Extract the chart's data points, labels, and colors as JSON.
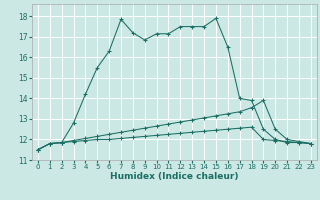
{
  "xlabel": "Humidex (Indice chaleur)",
  "bg_color": "#cce8e4",
  "grid_color": "#ffffff",
  "line_color": "#1a6e64",
  "xlim": [
    -0.5,
    23.5
  ],
  "ylim": [
    11,
    18.6
  ],
  "yticks": [
    11,
    12,
    13,
    14,
    15,
    16,
    17,
    18
  ],
  "xticks": [
    0,
    1,
    2,
    3,
    4,
    5,
    6,
    7,
    8,
    9,
    10,
    11,
    12,
    13,
    14,
    15,
    16,
    17,
    18,
    19,
    20,
    21,
    22,
    23
  ],
  "series": [
    {
      "x": [
        0,
        1,
        2,
        3,
        4,
        5,
        6,
        7,
        8,
        9,
        10,
        11,
        12,
        13,
        14,
        15,
        16,
        17,
        18,
        19,
        20,
        21,
        22,
        23
      ],
      "y": [
        11.5,
        11.8,
        11.85,
        12.8,
        14.2,
        15.5,
        16.3,
        17.85,
        17.2,
        16.85,
        17.15,
        17.15,
        17.5,
        17.5,
        17.5,
        17.9,
        16.5,
        14.0,
        13.9,
        12.5,
        12.0,
        11.85,
        11.85,
        11.8
      ]
    },
    {
      "x": [
        0,
        1,
        2,
        3,
        4,
        5,
        6,
        7,
        8,
        9,
        10,
        11,
        12,
        13,
        14,
        15,
        16,
        17,
        18,
        19,
        20,
        21,
        22,
        23
      ],
      "y": [
        11.5,
        11.8,
        11.85,
        11.95,
        12.05,
        12.15,
        12.25,
        12.35,
        12.45,
        12.55,
        12.65,
        12.75,
        12.85,
        12.95,
        13.05,
        13.15,
        13.25,
        13.35,
        13.55,
        13.9,
        12.5,
        12.0,
        11.9,
        11.8
      ]
    },
    {
      "x": [
        0,
        1,
        2,
        3,
        4,
        5,
        6,
        7,
        8,
        9,
        10,
        11,
        12,
        13,
        14,
        15,
        16,
        17,
        18,
        19,
        20,
        21,
        22,
        23
      ],
      "y": [
        11.5,
        11.8,
        11.85,
        11.9,
        11.95,
        12.0,
        12.0,
        12.05,
        12.1,
        12.15,
        12.2,
        12.25,
        12.3,
        12.35,
        12.4,
        12.45,
        12.5,
        12.55,
        12.6,
        12.0,
        11.95,
        11.9,
        11.85,
        11.8
      ]
    }
  ]
}
